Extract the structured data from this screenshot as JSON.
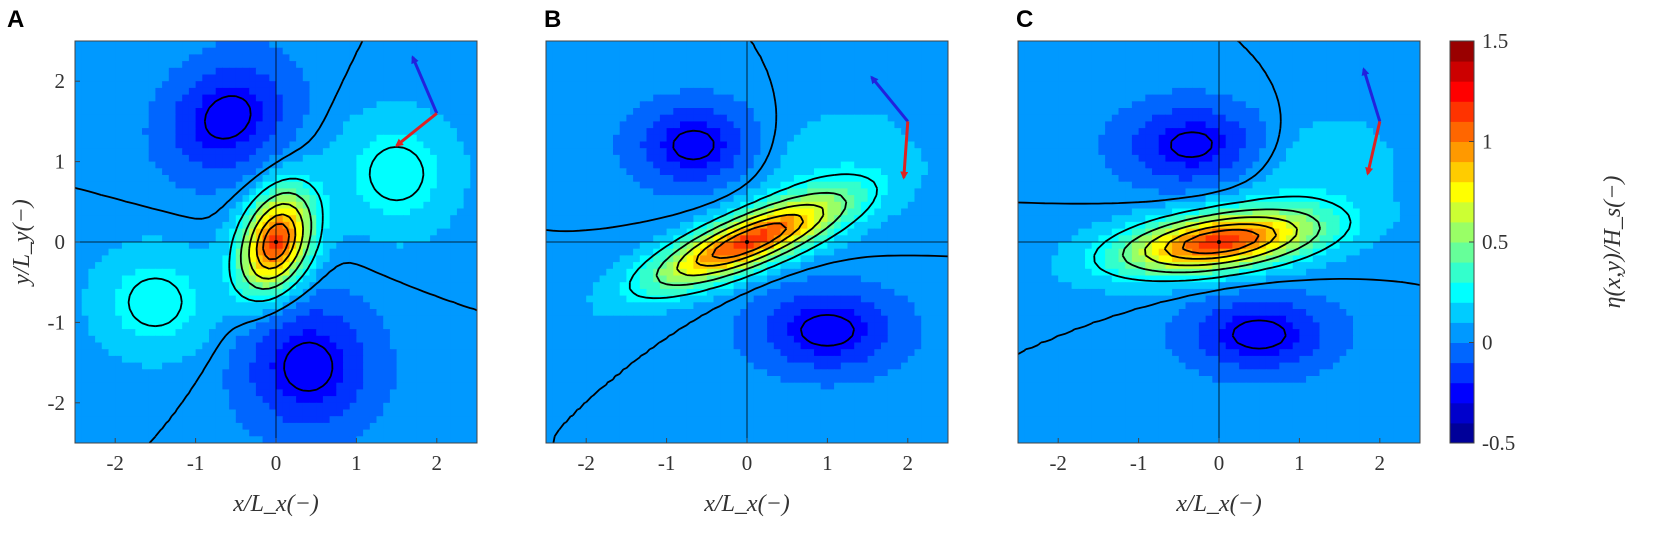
{
  "chart_data": [
    {
      "type": "heatmap",
      "panel": "A",
      "xlabel": "x/L_x(−)",
      "ylabel": "y/L_y(−)",
      "xlim": [
        -2.5,
        2.5
      ],
      "ylim": [
        -2.5,
        2.5
      ],
      "xticks": [
        "-2",
        "-1",
        "0",
        "1",
        "2"
      ],
      "yticks": [
        "-2",
        "-1",
        "0",
        "1",
        "2"
      ],
      "peak": {
        "x": 0,
        "y": 0,
        "value": 1.1
      },
      "lobes": [
        {
          "x": 0.0,
          "y": 0.0,
          "sx": 0.28,
          "sy": 0.45,
          "rot": -20,
          "amp": 1.1
        },
        {
          "x": -0.6,
          "y": 1.55,
          "sx": 0.55,
          "sy": 0.45,
          "rot": 35,
          "amp": -0.35
        },
        {
          "x": 0.4,
          "y": -1.55,
          "sx": 0.55,
          "sy": 0.55,
          "rot": 45,
          "amp": -0.35
        },
        {
          "x": 1.5,
          "y": 0.85,
          "sx": 0.5,
          "sy": 0.5,
          "rot": 0,
          "amp": 0.25
        },
        {
          "x": -1.5,
          "y": -0.75,
          "sx": 0.5,
          "sy": 0.45,
          "rot": 0,
          "amp": 0.25
        }
      ],
      "arrows": [
        {
          "color": "#2222dd",
          "dx": -0.3,
          "dy": 0.7
        },
        {
          "color": "#dd2222",
          "dx": -0.5,
          "dy": -0.4
        }
      ],
      "arrow_origin": {
        "x": 2.0,
        "y": 1.6
      }
    },
    {
      "type": "heatmap",
      "panel": "B",
      "xlabel": "x/L_x(−)",
      "xlim": [
        -2.5,
        2.5
      ],
      "ylim": [
        -2.5,
        2.5
      ],
      "xticks": [
        "-2",
        "-1",
        "0",
        "1",
        "2"
      ],
      "peak": {
        "x": 0,
        "y": 0,
        "value": 1.1
      },
      "lobes": [
        {
          "x": 0.0,
          "y": 0.0,
          "sx": 0.85,
          "sy": 0.22,
          "rot": 22,
          "amp": 1.1
        },
        {
          "x": -0.65,
          "y": 1.2,
          "sx": 0.5,
          "sy": 0.35,
          "rot": 0,
          "amp": -0.35
        },
        {
          "x": 1.0,
          "y": -1.1,
          "sx": 0.6,
          "sy": 0.35,
          "rot": 0,
          "amp": -0.35
        },
        {
          "x": 1.0,
          "y": 0.9,
          "sx": 0.8,
          "sy": 0.5,
          "rot": 20,
          "amp": 0.12
        }
      ],
      "arrows": [
        {
          "color": "#2222dd",
          "dx": -0.45,
          "dy": 0.55
        },
        {
          "color": "#dd2222",
          "dx": -0.05,
          "dy": -0.7
        }
      ],
      "arrow_origin": {
        "x": 2.0,
        "y": 1.5
      }
    },
    {
      "type": "heatmap",
      "panel": "C",
      "xlabel": "x/L_x(−)",
      "xlim": [
        -2.5,
        2.5
      ],
      "ylim": [
        -2.5,
        2.5
      ],
      "xticks": [
        "-2",
        "-1",
        "0",
        "1",
        "2"
      ],
      "peak": {
        "x": 0,
        "y": 0,
        "value": 1.1
      },
      "lobes": [
        {
          "x": 0.0,
          "y": 0.0,
          "sx": 0.85,
          "sy": 0.24,
          "rot": 8,
          "amp": 1.1
        },
        {
          "x": -0.3,
          "y": 1.2,
          "sx": 0.6,
          "sy": 0.35,
          "rot": 0,
          "amp": -0.35
        },
        {
          "x": 0.5,
          "y": -1.15,
          "sx": 0.6,
          "sy": 0.32,
          "rot": 0,
          "amp": -0.35
        },
        {
          "x": 1.1,
          "y": 0.9,
          "sx": 0.8,
          "sy": 0.5,
          "rot": 10,
          "amp": 0.12
        }
      ],
      "arrows": [
        {
          "color": "#2222dd",
          "dx": -0.2,
          "dy": 0.65
        },
        {
          "color": "#dd2222",
          "dx": -0.15,
          "dy": -0.65
        }
      ],
      "arrow_origin": {
        "x": 2.0,
        "y": 1.5
      }
    }
  ],
  "colorbar": {
    "label": "η(x,y)/H_s(−)",
    "ticks": [
      "1.5",
      "1",
      "0.5",
      "0",
      "-0.5"
    ],
    "range": [
      -0.5,
      1.5
    ],
    "colormap": "jet",
    "contour_levels": [
      -0.25,
      0.05,
      0.25,
      0.45,
      0.65,
      0.85,
      1.0
    ]
  }
}
